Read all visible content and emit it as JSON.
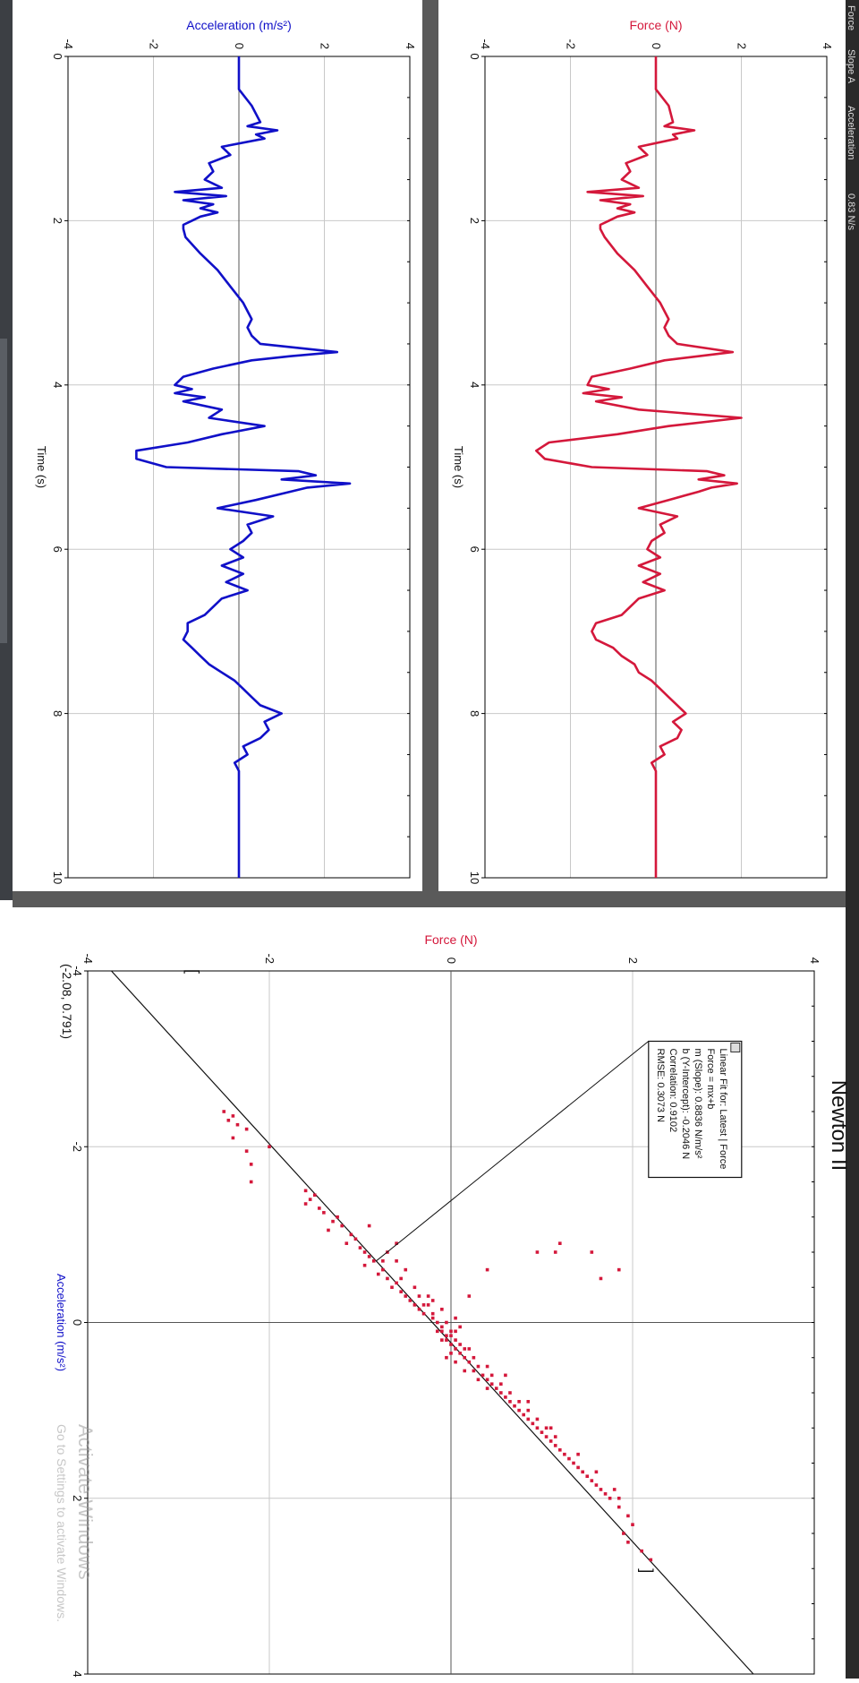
{
  "window": {
    "header_fragments": [
      "Force",
      "Slope A",
      "Acceleration",
      "0.83 N/s"
    ],
    "watermark": {
      "title": "Activate Windows",
      "subtitle": "Go to Settings to activate Windows."
    }
  },
  "colors": {
    "force": "#d4183b",
    "acceleration": "#1010c8",
    "grid": "#c8c8c8",
    "axis": "#000000",
    "frame": "#5a5a5a"
  },
  "chart_data": [
    {
      "type": "line",
      "id": "acceleration-vs-time",
      "xlabel": "Time (s)",
      "ylabel": "Acceleration (m/s²)",
      "xlim": [
        0,
        10
      ],
      "ylim": [
        -4,
        4
      ],
      "x_ticks": [
        "0",
        "2",
        "4",
        "6",
        "8",
        "10"
      ],
      "y_ticks": [
        "-4",
        "-2",
        "0",
        "2",
        "4"
      ],
      "series": [
        {
          "name": "Acceleration",
          "color": "#1010c8",
          "x": [
            0,
            0.4,
            0.6,
            0.8,
            0.85,
            0.9,
            0.95,
            1.0,
            1.1,
            1.2,
            1.3,
            1.4,
            1.5,
            1.55,
            1.6,
            1.65,
            1.7,
            1.75,
            1.8,
            1.85,
            1.9,
            1.95,
            2.0,
            2.05,
            2.1,
            2.2,
            2.4,
            2.6,
            2.8,
            3.0,
            3.2,
            3.3,
            3.4,
            3.5,
            3.6,
            3.65,
            3.7,
            3.8,
            3.9,
            4.0,
            4.05,
            4.1,
            4.15,
            4.2,
            4.3,
            4.4,
            4.5,
            4.6,
            4.7,
            4.8,
            4.9,
            5.0,
            5.05,
            5.1,
            5.15,
            5.2,
            5.25,
            5.3,
            5.4,
            5.5,
            5.6,
            5.7,
            5.8,
            5.9,
            6.0,
            6.1,
            6.2,
            6.3,
            6.4,
            6.5,
            6.6,
            6.7,
            6.8,
            6.9,
            7.0,
            7.1,
            7.2,
            7.3,
            7.4,
            7.5,
            7.6,
            7.7,
            7.8,
            7.9,
            8.0,
            8.1,
            8.2,
            8.3,
            8.4,
            8.5,
            8.6,
            8.7,
            9.0,
            9.3,
            9.6,
            10.0
          ],
          "y": [
            0,
            0,
            0.3,
            0.5,
            0.2,
            0.9,
            0.4,
            0.6,
            -0.4,
            -0.2,
            -0.7,
            -0.6,
            -0.8,
            -0.6,
            -0.4,
            -1.5,
            -0.3,
            -1.3,
            -0.6,
            -0.9,
            -0.5,
            -0.9,
            -1.1,
            -1.3,
            -1.3,
            -1.25,
            -0.9,
            -0.5,
            -0.2,
            0.1,
            0.3,
            0.2,
            0.3,
            0.5,
            2.3,
            1.2,
            0.3,
            -0.6,
            -1.3,
            -1.5,
            -1.1,
            -1.5,
            -0.8,
            -1.3,
            -0.4,
            -0.7,
            0.6,
            -0.4,
            -1.2,
            -2.4,
            -2.4,
            -1.7,
            1.4,
            1.8,
            1.0,
            2.6,
            1.6,
            1.2,
            0.4,
            -0.5,
            0.8,
            0.2,
            0.3,
            0.1,
            -0.2,
            0.1,
            -0.4,
            0.1,
            -0.3,
            0.2,
            -0.4,
            -0.6,
            -0.8,
            -1.2,
            -1.2,
            -1.3,
            -1.1,
            -0.9,
            -0.7,
            -0.4,
            -0.1,
            0.1,
            0.3,
            0.5,
            1.0,
            0.6,
            0.7,
            0.5,
            0.1,
            0.2,
            -0.1,
            0,
            0,
            0,
            0,
            0
          ]
        }
      ]
    },
    {
      "type": "line",
      "id": "force-vs-time",
      "xlabel": "Time (s)",
      "ylabel": "Force (N)",
      "xlim": [
        0,
        10
      ],
      "ylim": [
        -4,
        4
      ],
      "x_ticks": [
        "0",
        "2",
        "4",
        "6",
        "8",
        "10"
      ],
      "y_ticks": [
        "-4",
        "-2",
        "0",
        "2",
        "4"
      ],
      "series": [
        {
          "name": "Force",
          "color": "#d4183b",
          "x": [
            0,
            0.4,
            0.6,
            0.8,
            0.85,
            0.9,
            0.95,
            1.0,
            1.1,
            1.2,
            1.3,
            1.4,
            1.5,
            1.55,
            1.6,
            1.65,
            1.7,
            1.75,
            1.8,
            1.85,
            1.9,
            1.95,
            2.0,
            2.05,
            2.1,
            2.2,
            2.4,
            2.6,
            2.8,
            3.0,
            3.2,
            3.3,
            3.4,
            3.5,
            3.6,
            3.65,
            3.7,
            3.8,
            3.9,
            4.0,
            4.05,
            4.1,
            4.15,
            4.2,
            4.3,
            4.4,
            4.5,
            4.6,
            4.7,
            4.8,
            4.9,
            5.0,
            5.05,
            5.1,
            5.15,
            5.2,
            5.25,
            5.3,
            5.4,
            5.5,
            5.6,
            5.7,
            5.8,
            5.9,
            6.0,
            6.1,
            6.2,
            6.3,
            6.4,
            6.5,
            6.6,
            6.7,
            6.8,
            6.9,
            7.0,
            7.1,
            7.2,
            7.3,
            7.4,
            7.5,
            7.6,
            7.7,
            7.8,
            7.9,
            8.0,
            8.1,
            8.2,
            8.3,
            8.4,
            8.5,
            8.6,
            8.7,
            9.0,
            9.3,
            9.6,
            10.0
          ],
          "y": [
            0,
            0,
            0.3,
            0.4,
            0.2,
            0.9,
            0.4,
            0.5,
            -0.4,
            -0.2,
            -0.7,
            -0.6,
            -0.8,
            -0.6,
            -0.4,
            -1.6,
            -0.3,
            -1.3,
            -0.6,
            -0.9,
            -0.5,
            -0.9,
            -1.1,
            -1.3,
            -1.3,
            -1.2,
            -0.9,
            -0.5,
            -0.2,
            0.1,
            0.3,
            0.2,
            0.3,
            0.5,
            1.8,
            1.0,
            0.2,
            -0.6,
            -1.5,
            -1.6,
            -1.1,
            -1.7,
            -0.8,
            -1.4,
            -0.4,
            2.0,
            0.3,
            -0.9,
            -2.5,
            -2.8,
            -2.6,
            -1.5,
            1.2,
            1.6,
            1.0,
            1.9,
            1.3,
            1.0,
            0.3,
            -0.4,
            0.5,
            0.1,
            0.2,
            -0.1,
            -0.2,
            0.1,
            -0.4,
            0.1,
            -0.3,
            0.2,
            -0.4,
            -0.6,
            -0.8,
            -1.4,
            -1.5,
            -1.4,
            -1.0,
            -0.8,
            -0.5,
            -0.4,
            -0.1,
            0.1,
            0.3,
            0.5,
            0.7,
            0.4,
            0.6,
            0.5,
            0.1,
            0.2,
            -0.1,
            0,
            0,
            0,
            0,
            0
          ]
        }
      ]
    },
    {
      "type": "scatter",
      "id": "force-vs-acceleration",
      "title": "Newton II",
      "xlabel": "Acceleration (m/s²)",
      "ylabel": "Force (N)",
      "xlim": [
        -4,
        4
      ],
      "ylim": [
        -4,
        4
      ],
      "x_ticks": [
        "-4",
        "-2",
        "0",
        "2",
        "4"
      ],
      "y_ticks": [
        "-4",
        "-2",
        "0",
        "2",
        "4"
      ],
      "cursor_readout": "(-2.08, 0.791)",
      "fit": {
        "lines": [
          "Linear Fit for: Latest | Force",
          "Force = mx+b",
          "m (Slope): 0.8836 N/m/s²",
          "b (Y-Intercept): -0.2046 N",
          "Correlation: 0.9102",
          "RMSE: 0.3073 N"
        ],
        "slope": 0.8836,
        "intercept": -0.2046
      },
      "series": [
        {
          "name": "Latest | Force",
          "color": "#d4183b",
          "points": [
            [
              -2.4,
              -2.5
            ],
            [
              -2.35,
              -2.4
            ],
            [
              -2.3,
              -2.45
            ],
            [
              -2.25,
              -2.35
            ],
            [
              -2.2,
              -2.25
            ],
            [
              -2.1,
              -2.4
            ],
            [
              -2.0,
              -2.0
            ],
            [
              -1.95,
              -2.25
            ],
            [
              -1.8,
              -2.2
            ],
            [
              -1.6,
              -2.2
            ],
            [
              -1.5,
              -1.6
            ],
            [
              -1.45,
              -1.5
            ],
            [
              -1.4,
              -1.55
            ],
            [
              -1.35,
              -1.6
            ],
            [
              -1.3,
              -1.45
            ],
            [
              -1.25,
              -1.4
            ],
            [
              -1.2,
              -1.25
            ],
            [
              -1.15,
              -1.3
            ],
            [
              -1.1,
              -1.2
            ],
            [
              -1.05,
              -1.35
            ],
            [
              -1.0,
              -1.1
            ],
            [
              -0.95,
              -1.05
            ],
            [
              -0.9,
              -1.15
            ],
            [
              -0.85,
              -1.0
            ],
            [
              -0.8,
              -0.95
            ],
            [
              -0.75,
              -0.9
            ],
            [
              -0.7,
              -0.85
            ],
            [
              -0.65,
              -0.95
            ],
            [
              -0.6,
              -0.75
            ],
            [
              -0.55,
              -0.8
            ],
            [
              -0.5,
              -0.7
            ],
            [
              -0.45,
              -0.6
            ],
            [
              -0.4,
              -0.65
            ],
            [
              -0.35,
              -0.55
            ],
            [
              -0.3,
              -0.5
            ],
            [
              -0.25,
              -0.45
            ],
            [
              -0.2,
              -0.4
            ],
            [
              -0.15,
              -0.35
            ],
            [
              -0.1,
              -0.3
            ],
            [
              -0.05,
              -0.2
            ],
            [
              0.0,
              -0.15
            ],
            [
              0.05,
              -0.1
            ],
            [
              0.1,
              -0.1
            ],
            [
              0.15,
              -0.05
            ],
            [
              0.2,
              -0.1
            ],
            [
              0.25,
              0.0
            ],
            [
              0.3,
              0.05
            ],
            [
              0.35,
              0.1
            ],
            [
              0.4,
              0.15
            ],
            [
              0.45,
              0.2
            ],
            [
              0.5,
              0.3
            ],
            [
              0.55,
              0.25
            ],
            [
              0.6,
              0.35
            ],
            [
              0.65,
              0.4
            ],
            [
              0.7,
              0.45
            ],
            [
              0.75,
              0.5
            ],
            [
              0.8,
              0.55
            ],
            [
              0.85,
              0.6
            ],
            [
              0.9,
              0.65
            ],
            [
              0.95,
              0.7
            ],
            [
              1.0,
              0.75
            ],
            [
              1.05,
              0.8
            ],
            [
              1.1,
              0.85
            ],
            [
              1.15,
              0.9
            ],
            [
              1.2,
              0.95
            ],
            [
              1.25,
              1.0
            ],
            [
              1.3,
              1.05
            ],
            [
              1.35,
              1.1
            ],
            [
              1.4,
              1.15
            ],
            [
              1.45,
              1.2
            ],
            [
              1.5,
              1.25
            ],
            [
              1.55,
              1.3
            ],
            [
              1.6,
              1.35
            ],
            [
              1.65,
              1.4
            ],
            [
              1.7,
              1.45
            ],
            [
              1.75,
              1.5
            ],
            [
              1.8,
              1.55
            ],
            [
              1.85,
              1.6
            ],
            [
              1.9,
              1.65
            ],
            [
              1.95,
              1.7
            ],
            [
              2.0,
              1.75
            ],
            [
              2.1,
              1.85
            ],
            [
              2.2,
              1.95
            ],
            [
              2.3,
              2.0
            ],
            [
              2.4,
              1.9
            ],
            [
              2.5,
              1.95
            ],
            [
              2.6,
              2.1
            ],
            [
              2.7,
              2.2
            ],
            [
              -0.9,
              -0.6
            ],
            [
              -0.8,
              -0.7
            ],
            [
              -0.7,
              -0.6
            ],
            [
              -0.6,
              -0.5
            ],
            [
              -0.5,
              -0.55
            ],
            [
              -0.4,
              -0.4
            ],
            [
              -0.3,
              -0.35
            ],
            [
              -0.2,
              -0.25
            ],
            [
              -0.1,
              -0.2
            ],
            [
              0.0,
              -0.05
            ],
            [
              0.1,
              0.0
            ],
            [
              0.2,
              0.05
            ],
            [
              0.3,
              0.15
            ],
            [
              0.4,
              0.25
            ],
            [
              0.5,
              0.4
            ],
            [
              0.6,
              0.45
            ],
            [
              0.7,
              0.55
            ],
            [
              0.8,
              0.65
            ],
            [
              0.9,
              0.75
            ],
            [
              1.0,
              0.85
            ],
            [
              1.1,
              0.95
            ],
            [
              1.2,
              1.05
            ],
            [
              1.3,
              1.15
            ],
            [
              1.5,
              1.4
            ],
            [
              1.7,
              1.6
            ],
            [
              1.9,
              1.8
            ],
            [
              2.0,
              1.85
            ],
            [
              -1.1,
              -0.9
            ],
            [
              -0.7,
              -0.75
            ],
            [
              -0.3,
              -0.25
            ],
            [
              0.1,
              -0.15
            ],
            [
              0.3,
              0.2
            ],
            [
              0.6,
              0.6
            ],
            [
              0.9,
              0.85
            ],
            [
              1.2,
              1.1
            ],
            [
              -0.8,
              0.95
            ],
            [
              -0.6,
              0.4
            ],
            [
              -0.9,
              1.2
            ],
            [
              -0.8,
              1.55
            ],
            [
              -0.5,
              1.65
            ],
            [
              -0.6,
              1.85
            ],
            [
              -0.8,
              1.15
            ],
            [
              -0.3,
              0.2
            ],
            [
              0.05,
              0.1
            ],
            [
              -0.05,
              0.05
            ],
            [
              0.15,
              0.0
            ],
            [
              0.2,
              -0.05
            ],
            [
              -0.15,
              -0.1
            ],
            [
              0.25,
              0.1
            ],
            [
              0.35,
              0.0
            ],
            [
              0.4,
              -0.05
            ],
            [
              0.45,
              0.05
            ],
            [
              0.1,
              0.05
            ],
            [
              -0.2,
              -0.3
            ],
            [
              -0.25,
              -0.2
            ],
            [
              0.55,
              0.15
            ],
            [
              0.65,
              0.3
            ],
            [
              0.75,
              0.4
            ]
          ]
        }
      ]
    }
  ]
}
